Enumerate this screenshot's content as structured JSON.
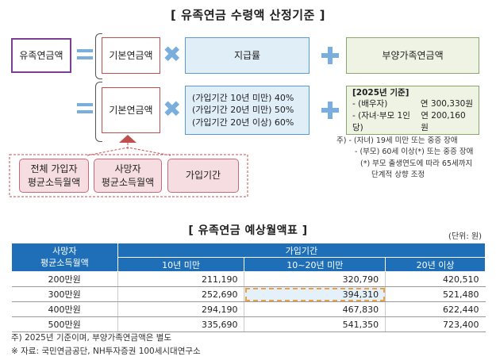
{
  "main_title": "[ 유족연금 수령액 산정기준 ]",
  "formula": {
    "result": "유족연금액",
    "row1": {
      "base": "기본연금액",
      "rate": "지급률",
      "family": "부양가족연금액"
    },
    "row2": {
      "base": "기본연금액",
      "rates": [
        "(가입기간 10년 미만) 40%",
        "(가입기간 20년 미만) 50%",
        "(가입기간 20년 이상) 60%"
      ],
      "family_title": "[2025년 기준]",
      "family_items": [
        {
          "label": "- (배우자)",
          "value": "연 300,330원"
        },
        {
          "label": "- (자녀·부모 1인당)",
          "value": "연 200,160원"
        }
      ]
    },
    "base_components": [
      "전체 가입자\n평균소득월액",
      "사망자\n평균소득월액",
      "가입기간"
    ],
    "notes": [
      "주) - (자녀) 19세 미만 또는 중증 장애",
      "- (부모) 60세 이상(*) 또는 중증 장애",
      "(*) 부모 출생연도에 따라 65세까지",
      "단계적 상향 조정"
    ]
  },
  "table": {
    "title": "[ 유족연금 예상월액표 ]",
    "unit": "(단위: 원)",
    "col_header_group": "가입기간",
    "row_header": "사망자\n평균소득월액",
    "columns": [
      "10년 미만",
      "10~20년 미만",
      "20년 이상"
    ],
    "rows": [
      {
        "income": "200만원",
        "values": [
          "211,190",
          "320,790",
          "420,510"
        ]
      },
      {
        "income": "300만원",
        "values": [
          "252,690",
          "394,310",
          "521,480"
        ]
      },
      {
        "income": "400만원",
        "values": [
          "294,190",
          "467,830",
          "622,440"
        ]
      },
      {
        "income": "500만원",
        "values": [
          "335,690",
          "541,350",
          "723,400"
        ]
      }
    ]
  },
  "footnotes": [
    "주) 2025년 기준이며, 부양가족연금액은 별도",
    "※ 자료: 국민연금공단, NH투자증권 100세시대연구소"
  ],
  "colors": {
    "accent_blue": "#1f6fb8",
    "purple": "#7b3f94",
    "red": "#c0504d",
    "dashed_highlight": "#f0a040"
  }
}
